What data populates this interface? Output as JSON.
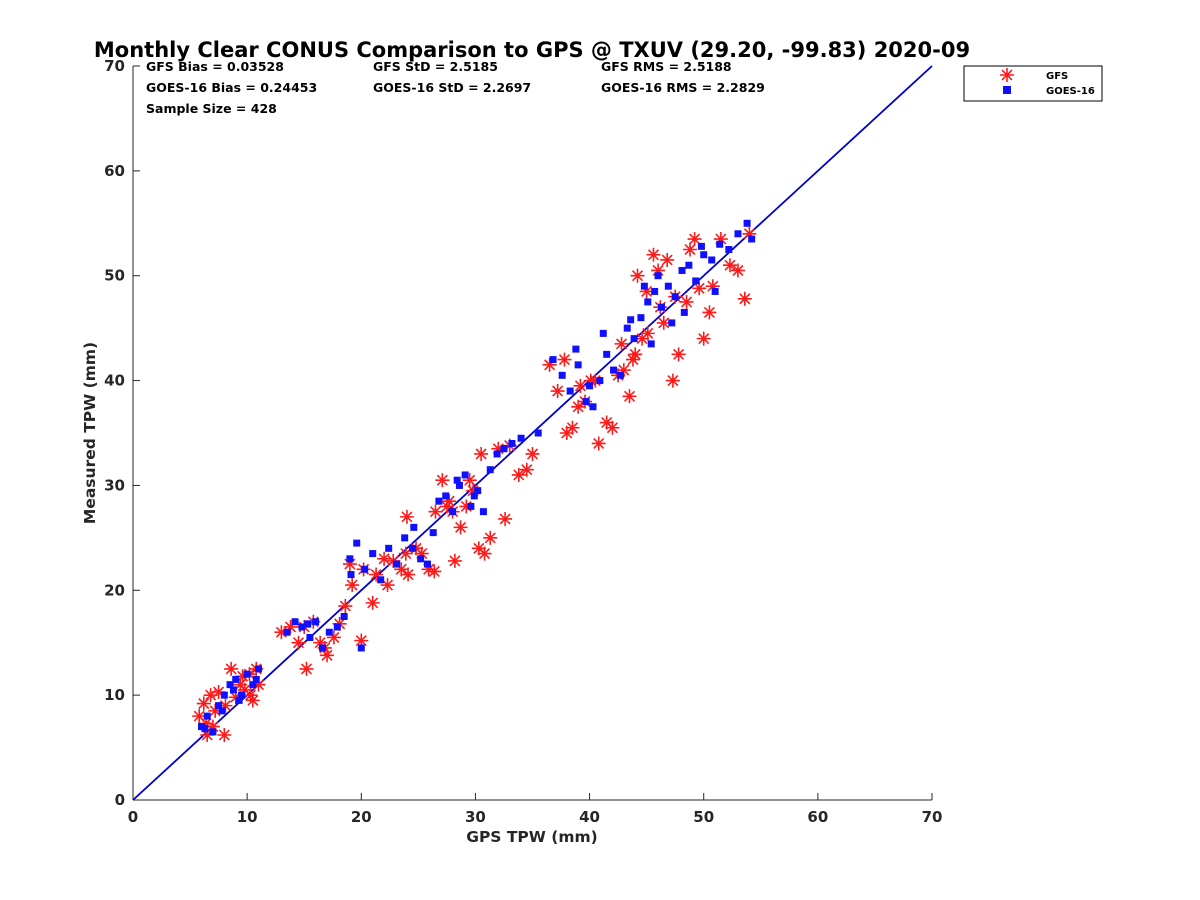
{
  "chart_data": {
    "type": "scatter",
    "title": "Monthly Clear CONUS Comparison to GPS @ TXUV (29.20, -99.83) 2020-09",
    "xlabel": "GPS TPW (mm)",
    "ylabel": "Measured TPW (mm)",
    "xlim": [
      0,
      70
    ],
    "ylim": [
      0,
      70
    ],
    "xticks": [
      "0",
      "10",
      "20",
      "30",
      "40",
      "50",
      "60",
      "70"
    ],
    "yticks": [
      "0",
      "10",
      "20",
      "30",
      "40",
      "50",
      "60",
      "70"
    ],
    "legend_position": "top-right",
    "colors": {
      "gfs": "#ff1a1a",
      "goes": "#1010ff",
      "reference_line": "#0000cc"
    },
    "stats": {
      "gfs_bias": "GFS Bias = 0.03528",
      "gfs_std": "GFS StD = 2.5185",
      "gfs_rms": "GFS RMS = 2.5188",
      "goes_bias": "GOES-16 Bias = 0.24453",
      "goes_std": "GOES-16 StD = 2.2697",
      "goes_rms": "GOES-16 RMS = 2.2829",
      "sample_size": "Sample Size = 428"
    },
    "reference_line": {
      "name": "1:1",
      "x": [
        0,
        70
      ],
      "y": [
        0,
        70
      ]
    },
    "series": [
      {
        "name": "GFS",
        "marker": "asterisk",
        "x": [
          5.8,
          6.2,
          6.5,
          7.0,
          6.8,
          7.5,
          8.0,
          8.6,
          9.0,
          9.4,
          9.8,
          10.2,
          10.5,
          10.8,
          11.0,
          7.2,
          8.1,
          6.4,
          9.6,
          10.3,
          13.0,
          13.8,
          14.5,
          15.2,
          15.8,
          16.4,
          17.0,
          17.6,
          18.1,
          18.6,
          19.2,
          20.0,
          15.0,
          16.8,
          21.0,
          19.0,
          20.2,
          21.3,
          22.0,
          22.8,
          23.5,
          24.1,
          24.8,
          25.3,
          25.9,
          26.4,
          24.0,
          22.3,
          23.9,
          26.5,
          27.1,
          27.7,
          28.2,
          28.7,
          29.2,
          29.8,
          30.3,
          30.8,
          31.3,
          32.0,
          32.6,
          27.5,
          29.5,
          30.5,
          28.0,
          33.0,
          33.8,
          34.5,
          35.0,
          36.5,
          37.2,
          38.0,
          38.5,
          39.0,
          39.6,
          40.1,
          40.8,
          41.5,
          42.0,
          42.5,
          43.0,
          39.2,
          40.5,
          37.8,
          43.5,
          44.0,
          44.6,
          45.1,
          45.6,
          46.2,
          46.8,
          47.3,
          47.8,
          48.5,
          49.2,
          50.0,
          50.8,
          51.5,
          52.3,
          53.0,
          53.6,
          54.0,
          44.2,
          45.0,
          46.5,
          47.5,
          48.8,
          49.6,
          43.8,
          46.0,
          42.8,
          50.5
        ],
        "y": [
          8.0,
          9.2,
          6.2,
          7.0,
          10.0,
          10.3,
          6.2,
          12.5,
          9.8,
          11.0,
          10.5,
          12.0,
          9.5,
          12.5,
          11.0,
          8.5,
          9.0,
          7.3,
          11.8,
          10.0,
          16.0,
          16.5,
          15.0,
          12.5,
          17.0,
          15.0,
          13.8,
          15.5,
          16.8,
          18.5,
          20.5,
          15.2,
          16.5,
          14.5,
          18.8,
          22.5,
          22.0,
          21.5,
          23.0,
          22.8,
          22.0,
          21.5,
          24.0,
          23.5,
          22.0,
          21.8,
          27.0,
          20.5,
          23.5,
          27.5,
          30.5,
          28.5,
          22.8,
          26.0,
          28.0,
          29.5,
          24.0,
          23.5,
          25.0,
          33.5,
          26.8,
          28.0,
          30.5,
          33.0,
          27.5,
          33.8,
          31.0,
          31.5,
          33.0,
          41.5,
          39.0,
          35.0,
          35.5,
          37.5,
          38.0,
          40.0,
          34.0,
          36.0,
          35.5,
          40.5,
          41.0,
          39.5,
          40.0,
          42.0,
          38.5,
          42.5,
          44.0,
          44.5,
          52.0,
          47.0,
          51.5,
          40.0,
          42.5,
          47.5,
          53.5,
          44.0,
          49.0,
          53.5,
          51.0,
          50.5,
          47.8,
          54.0,
          50.0,
          48.5,
          45.5,
          48.0,
          52.5,
          48.8,
          42.0,
          50.5,
          43.5,
          46.5
        ]
      },
      {
        "name": "GOES-16",
        "marker": "square",
        "x": [
          6.0,
          6.5,
          7.0,
          7.5,
          8.0,
          8.5,
          9.0,
          9.5,
          10.0,
          10.5,
          11.0,
          6.3,
          7.8,
          9.3,
          10.8,
          8.8,
          13.5,
          14.2,
          14.8,
          15.5,
          16.0,
          16.6,
          17.2,
          17.9,
          18.5,
          19.1,
          20.0,
          15.3,
          19.0,
          19.6,
          20.3,
          21.0,
          21.7,
          22.4,
          23.1,
          23.8,
          24.5,
          25.2,
          25.8,
          26.3,
          24.6,
          26.8,
          27.4,
          28.0,
          28.6,
          29.1,
          29.6,
          30.2,
          30.7,
          31.3,
          31.9,
          32.5,
          33.2,
          28.4,
          29.9,
          34.0,
          35.5,
          36.8,
          37.6,
          38.3,
          39.0,
          39.7,
          40.3,
          40.9,
          41.5,
          42.1,
          42.7,
          38.8,
          40.0,
          41.2,
          43.3,
          43.9,
          44.5,
          45.1,
          45.7,
          46.3,
          46.9,
          47.5,
          48.1,
          48.7,
          49.3,
          50.0,
          50.7,
          51.4,
          52.2,
          53.0,
          53.8,
          54.2,
          44.8,
          46.0,
          47.2,
          48.3,
          45.4,
          51.0,
          49.8,
          43.6
        ],
        "y": [
          7.0,
          8.0,
          6.5,
          9.0,
          10.0,
          11.0,
          11.5,
          10.0,
          12.0,
          11.0,
          12.5,
          6.8,
          8.5,
          9.5,
          11.5,
          10.5,
          16.0,
          17.0,
          16.5,
          15.5,
          17.0,
          14.5,
          16.0,
          16.5,
          17.5,
          21.5,
          14.5,
          16.8,
          23.0,
          24.5,
          22.0,
          23.5,
          21.0,
          24.0,
          22.5,
          25.0,
          24.0,
          23.0,
          22.5,
          25.5,
          26.0,
          28.5,
          29.0,
          27.5,
          30.0,
          31.0,
          28.0,
          29.5,
          27.5,
          31.5,
          33.0,
          33.5,
          34.0,
          30.5,
          29.0,
          34.5,
          35.0,
          42.0,
          40.5,
          39.0,
          41.5,
          38.0,
          37.5,
          40.0,
          42.5,
          41.0,
          40.5,
          43.0,
          39.5,
          44.5,
          45.0,
          44.0,
          46.0,
          47.5,
          48.5,
          47.0,
          49.0,
          48.0,
          50.5,
          51.0,
          49.5,
          52.0,
          51.5,
          53.0,
          52.5,
          54.0,
          55.0,
          53.5,
          49.0,
          50.0,
          45.5,
          46.5,
          43.5,
          48.5,
          52.8,
          45.8
        ]
      }
    ]
  }
}
